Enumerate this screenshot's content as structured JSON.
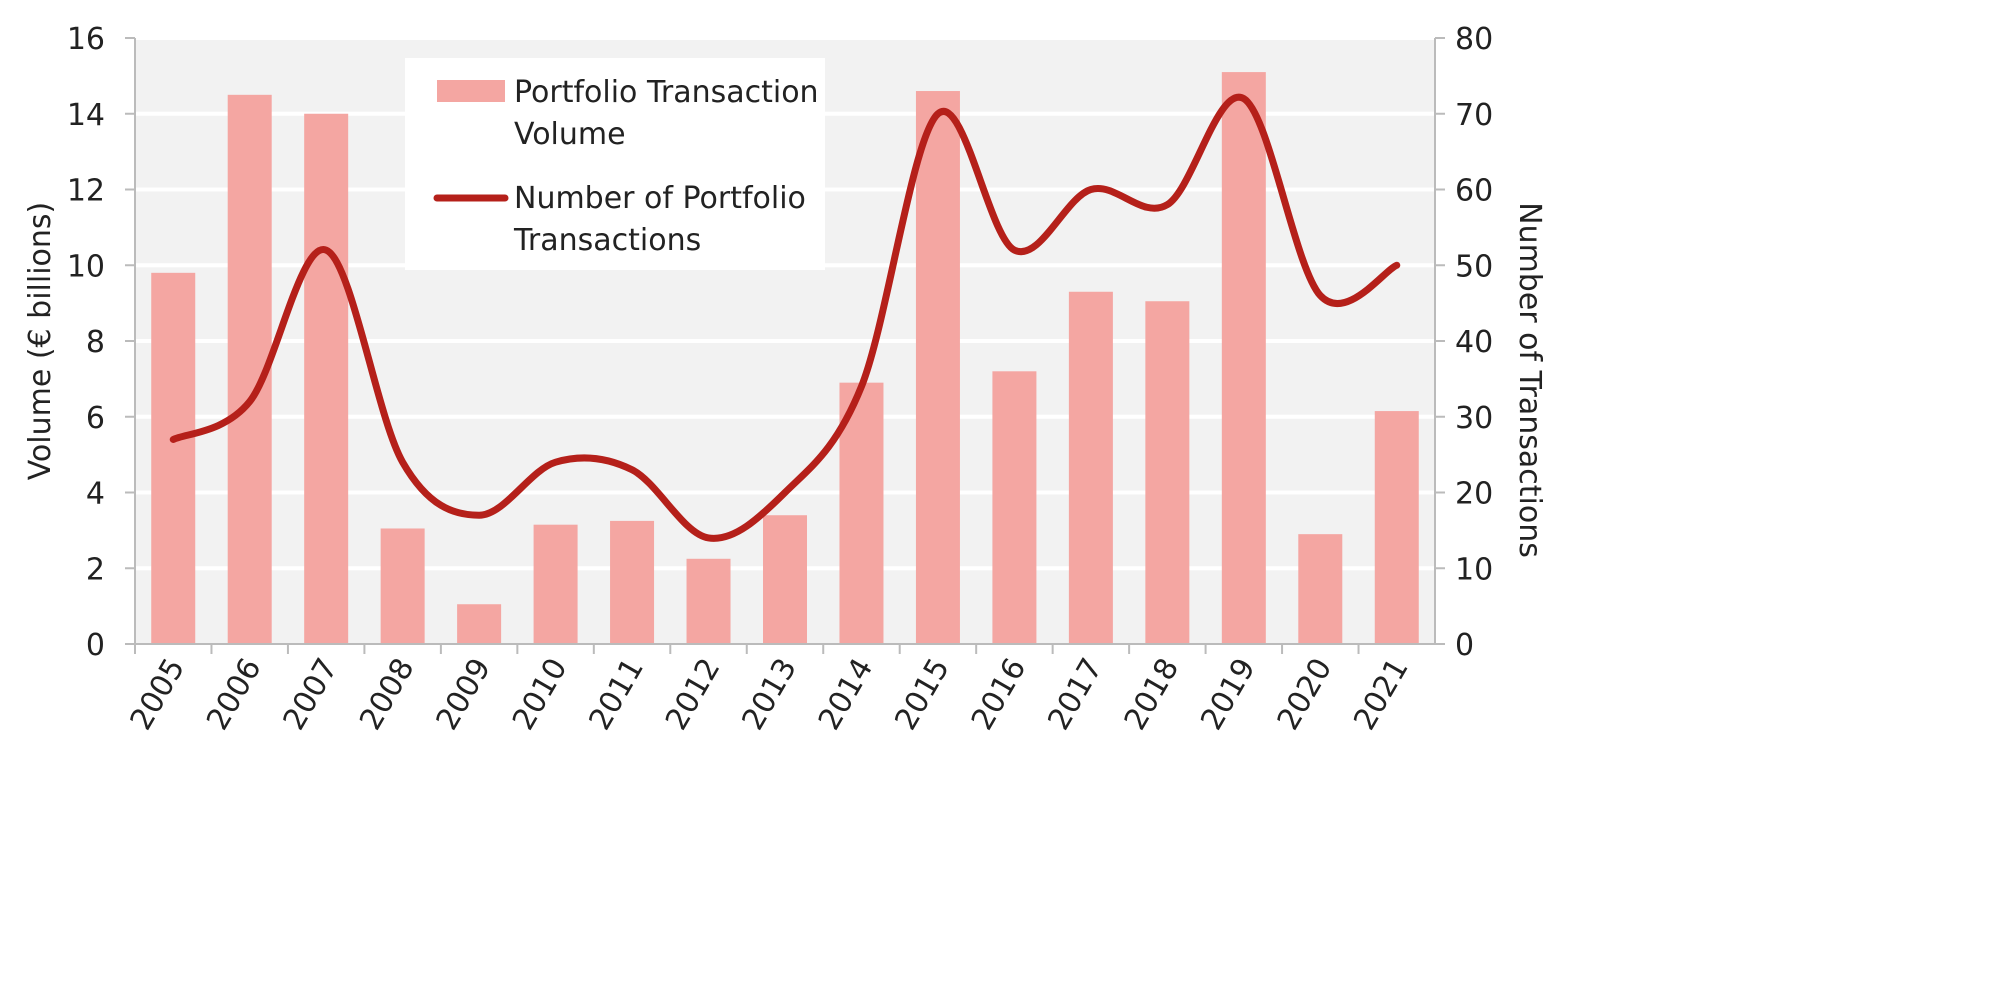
{
  "chart_data": {
    "type": "bar+line",
    "categories": [
      "2005",
      "2006",
      "2007",
      "2008",
      "2009",
      "2010",
      "2011",
      "2012",
      "2013",
      "2014",
      "2015",
      "2016",
      "2017",
      "2018",
      "2019",
      "2020",
      "2021"
    ],
    "series": [
      {
        "name": "Portfolio Transaction Volume",
        "type": "bar",
        "axis": "left",
        "color": "#f4a6a2",
        "values": [
          9.8,
          14.5,
          14.0,
          3.05,
          1.05,
          3.15,
          3.25,
          2.25,
          3.4,
          6.9,
          14.6,
          7.2,
          9.3,
          9.05,
          15.1,
          2.9,
          6.15
        ]
      },
      {
        "name": "Number of Portfolio Transactions",
        "type": "line",
        "axis": "right",
        "color": "#b5201a",
        "values": [
          27,
          32,
          52,
          24,
          17,
          24,
          23,
          14,
          20,
          34,
          70,
          52,
          60,
          58,
          72,
          46,
          50
        ]
      }
    ],
    "ylabel": "Volume (€ billions)",
    "y2label": "Number of Transactions",
    "ylim": [
      0,
      16
    ],
    "yticks": [
      0,
      2,
      4,
      6,
      8,
      10,
      12,
      14,
      16
    ],
    "y2lim": [
      0,
      80
    ],
    "y2ticks": [
      0,
      10,
      20,
      30,
      40,
      50,
      60,
      70,
      80
    ],
    "grid": true,
    "legend": {
      "placement": "top-left",
      "entries": [
        [
          "Portfolio Transaction",
          "Volume"
        ],
        [
          "Number of Portfolio",
          "Transactions"
        ]
      ]
    },
    "background_color": "#f2f2f2"
  }
}
